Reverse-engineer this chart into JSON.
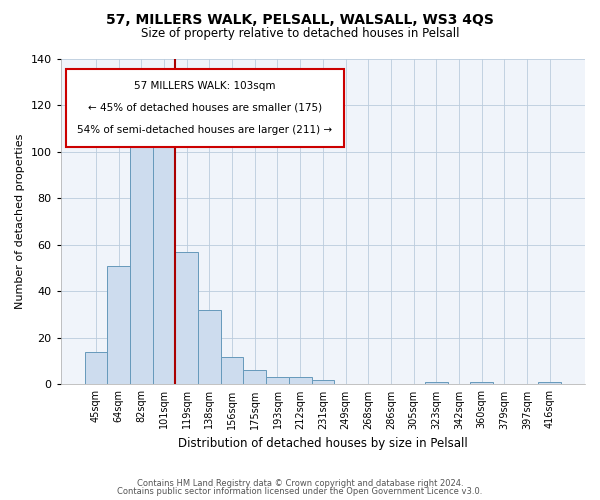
{
  "title": "57, MILLERS WALK, PELSALL, WALSALL, WS3 4QS",
  "subtitle": "Size of property relative to detached houses in Pelsall",
  "xlabel": "Distribution of detached houses by size in Pelsall",
  "ylabel": "Number of detached properties",
  "bin_labels": [
    "45sqm",
    "64sqm",
    "82sqm",
    "101sqm",
    "119sqm",
    "138sqm",
    "156sqm",
    "175sqm",
    "193sqm",
    "212sqm",
    "231sqm",
    "249sqm",
    "268sqm",
    "286sqm",
    "305sqm",
    "323sqm",
    "342sqm",
    "360sqm",
    "379sqm",
    "397sqm",
    "416sqm"
  ],
  "bar_values": [
    14,
    51,
    102,
    106,
    57,
    32,
    12,
    6,
    3,
    3,
    2,
    0,
    0,
    0,
    0,
    1,
    0,
    1,
    0,
    0,
    1
  ],
  "bar_color": "#cddcee",
  "bar_edge_color": "#6699bb",
  "ylim": [
    0,
    140
  ],
  "yticks": [
    0,
    20,
    40,
    60,
    80,
    100,
    120,
    140
  ],
  "property_line_color": "#aa0000",
  "annotation_line1": "57 MILLERS WALK: 103sqm",
  "annotation_line2": "← 45% of detached houses are smaller (175)",
  "annotation_line3": "54% of semi-detached houses are larger (211) →",
  "footer_line1": "Contains HM Land Registry data © Crown copyright and database right 2024.",
  "footer_line2": "Contains public sector information licensed under the Open Government Licence v3.0.",
  "background_color": "#f0f4fa",
  "grid_color": "#bbccdd"
}
